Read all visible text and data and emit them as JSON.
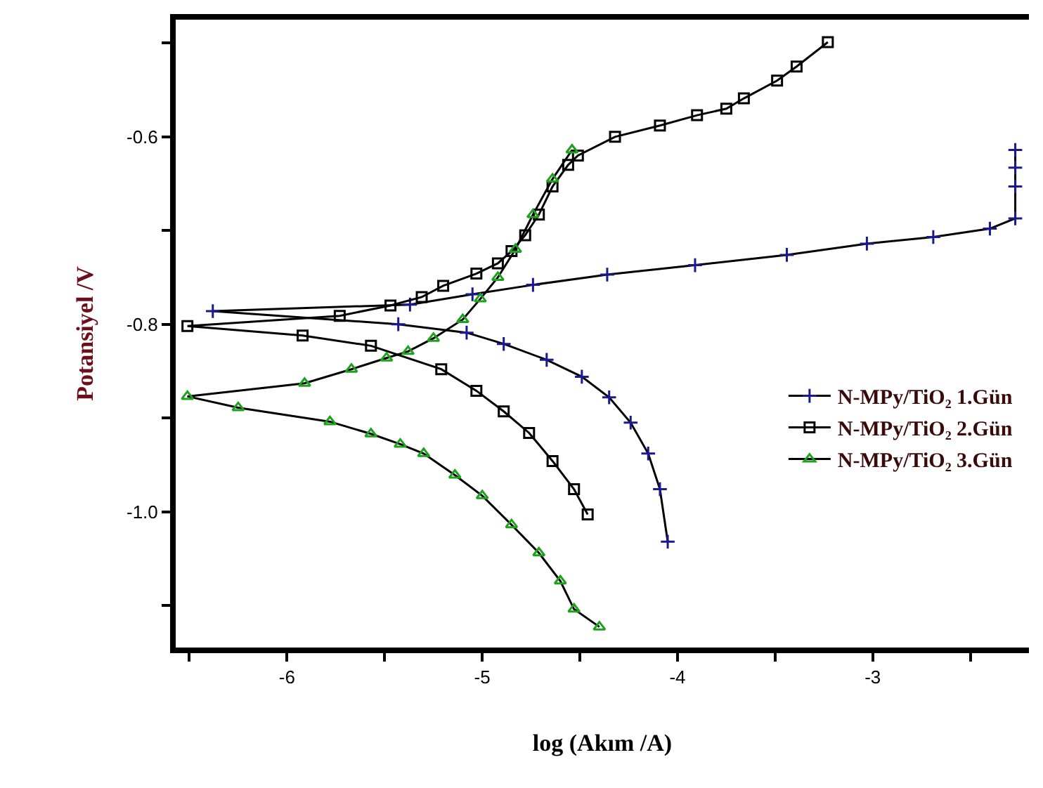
{
  "chart_data": {
    "type": "line",
    "xlabel": "log (Akım /A)",
    "ylabel": "Potansiyel /V",
    "xlim": [
      -6.57,
      -2.2
    ],
    "xticks": [
      {
        "value": -6.5,
        "label": null
      },
      -6,
      {
        "value": -5.5,
        "label": null
      },
      -5,
      {
        "value": -4.5,
        "label": null
      },
      -4,
      {
        "value": -3.5,
        "label": null
      },
      -3,
      {
        "value": -2.5,
        "label": null
      }
    ],
    "ylim": [
      -1.145,
      -0.475
    ],
    "yticks": [
      {
        "value": -1.1,
        "label": null
      },
      {
        "value": -1.0,
        "label": "-1.0"
      },
      {
        "value": -0.9,
        "label": null
      },
      -0.8,
      {
        "value": -0.7,
        "label": null
      },
      -0.6,
      {
        "value": -0.5,
        "label": null
      }
    ],
    "legend": "right",
    "line_style": "solid",
    "series": [
      {
        "name": "N-MPy/TiO₂ 1.Gün",
        "color": "#1a1a8c",
        "marker": "cross",
        "x": [
          -4.05,
          -4.09,
          -4.15,
          -4.24,
          -4.35,
          -4.49,
          -4.67,
          -4.89,
          -5.08,
          -5.43,
          -6.38,
          -5.37,
          -5.05,
          -4.74,
          -4.36,
          -3.91,
          -3.44,
          -3.03,
          -2.69,
          -2.4,
          -2.27,
          -2.27,
          -2.27,
          -2.27
        ],
        "values": [
          -1.032,
          -0.976,
          -0.938,
          -0.905,
          -0.878,
          -0.856,
          -0.838,
          -0.821,
          -0.809,
          -0.8,
          -0.786,
          -0.779,
          -0.768,
          -0.758,
          -0.747,
          -0.737,
          -0.726,
          -0.714,
          -0.707,
          -0.698,
          -0.687,
          -0.653,
          -0.633,
          -0.614
        ]
      },
      {
        "name": "N-MPy/TiO₂ 2.Gün",
        "color": "#000000",
        "marker": "square",
        "x": [
          -4.46,
          -4.53,
          -4.64,
          -4.76,
          -4.89,
          -5.03,
          -5.21,
          -5.57,
          -5.92,
          -6.51,
          -5.73,
          -5.47,
          -5.31,
          -5.2,
          -5.03,
          -4.92,
          -4.85,
          -4.78,
          -4.71,
          -4.64,
          -4.56,
          -4.51,
          -4.32,
          -4.09,
          -3.9,
          -3.75,
          -3.66,
          -3.49,
          -3.39,
          -3.23
        ],
        "values": [
          -1.003,
          -0.976,
          -0.946,
          -0.916,
          -0.893,
          -0.871,
          -0.848,
          -0.823,
          -0.812,
          -0.802,
          -0.791,
          -0.78,
          -0.771,
          -0.759,
          -0.746,
          -0.735,
          -0.722,
          -0.705,
          -0.683,
          -0.653,
          -0.63,
          -0.62,
          -0.6,
          -0.588,
          -0.577,
          -0.57,
          -0.559,
          -0.54,
          -0.525,
          -0.499
        ]
      },
      {
        "name": "N-MPy/TiO₂ 3.Gün",
        "color": "#1fa01f",
        "marker": "triangle",
        "x": [
          -4.4,
          -4.53,
          -4.6,
          -4.71,
          -4.85,
          -5.0,
          -5.14,
          -5.3,
          -5.42,
          -5.57,
          -5.78,
          -6.25,
          -6.51,
          -5.91,
          -5.67,
          -5.49,
          -5.38,
          -5.25,
          -5.1,
          -5.01,
          -4.92,
          -4.83,
          -4.74,
          -4.64,
          -4.54
        ],
        "values": [
          -1.123,
          -1.104,
          -1.074,
          -1.044,
          -1.014,
          -0.983,
          -0.961,
          -0.938,
          -0.928,
          -0.917,
          -0.904,
          -0.889,
          -0.877,
          -0.863,
          -0.848,
          -0.836,
          -0.829,
          -0.815,
          -0.795,
          -0.773,
          -0.75,
          -0.72,
          -0.683,
          -0.645,
          -0.614
        ]
      }
    ]
  }
}
